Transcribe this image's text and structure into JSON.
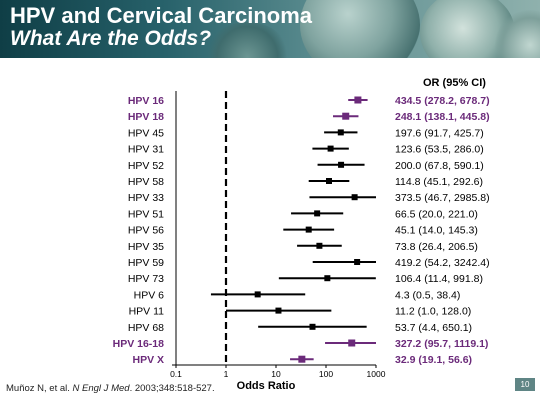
{
  "slide": {
    "title": "HPV and Cervical Carcinoma",
    "subtitle": "What Are the Odds?",
    "citation": {
      "authors": "Muñoz N, et al.",
      "journal": "N Engl J Med",
      "details": ". 2003;348:518-527."
    },
    "page_number": "10"
  },
  "colors": {
    "highlight": "#6b2a7a",
    "normal": "#000000",
    "reference_line": "#000000"
  },
  "chart_data": {
    "type": "forest",
    "title": "",
    "xlabel": "Odds Ratio",
    "ci_header": "OR (95% CI)",
    "x_scale": "log",
    "xlim": [
      0.1,
      1000
    ],
    "xticks": [
      0.1,
      1,
      10,
      100,
      1000
    ],
    "xtick_labels": [
      "0.1",
      "1",
      "10",
      "100",
      "1000"
    ],
    "reference_value": 1,
    "rows": [
      {
        "label": "HPV 16",
        "or": 434.5,
        "lo": 278.2,
        "hi": 678.7,
        "ci_text": "434.5 (278.2, 678.7)",
        "highlight": true
      },
      {
        "label": "HPV 18",
        "or": 248.1,
        "lo": 138.1,
        "hi": 445.8,
        "ci_text": "248.1 (138.1, 445.8)",
        "highlight": true
      },
      {
        "label": "HPV 45",
        "or": 197.6,
        "lo": 91.7,
        "hi": 425.7,
        "ci_text": "197.6 (91.7, 425.7)",
        "highlight": false
      },
      {
        "label": "HPV 31",
        "or": 123.6,
        "lo": 53.5,
        "hi": 286.0,
        "ci_text": "123.6 (53.5, 286.0)",
        "highlight": false
      },
      {
        "label": "HPV 52",
        "or": 200.0,
        "lo": 67.8,
        "hi": 590.1,
        "ci_text": "200.0 (67.8, 590.1)",
        "highlight": false
      },
      {
        "label": "HPV 58",
        "or": 114.8,
        "lo": 45.1,
        "hi": 292.6,
        "ci_text": "114.8 (45.1, 292.6)",
        "highlight": false
      },
      {
        "label": "HPV 33",
        "or": 373.5,
        "lo": 46.7,
        "hi": 2985.8,
        "ci_text": "373.5 (46.7, 2985.8)",
        "highlight": false
      },
      {
        "label": "HPV 51",
        "or": 66.5,
        "lo": 20.0,
        "hi": 221.0,
        "ci_text": "66.5 (20.0, 221.0)",
        "highlight": false
      },
      {
        "label": "HPV 56",
        "or": 45.1,
        "lo": 14.0,
        "hi": 145.3,
        "ci_text": "45.1 (14.0, 145.3)",
        "highlight": false
      },
      {
        "label": "HPV 35",
        "or": 73.8,
        "lo": 26.4,
        "hi": 206.5,
        "ci_text": "73.8 (26.4, 206.5)",
        "highlight": false
      },
      {
        "label": "HPV 59",
        "or": 419.2,
        "lo": 54.2,
        "hi": 3242.4,
        "ci_text": "419.2 (54.2, 3242.4)",
        "highlight": false
      },
      {
        "label": "HPV 73",
        "or": 106.4,
        "lo": 11.4,
        "hi": 991.8,
        "ci_text": "106.4 (11.4, 991.8)",
        "highlight": false
      },
      {
        "label": "HPV 6",
        "or": 4.3,
        "lo": 0.5,
        "hi": 38.4,
        "ci_text": "4.3 (0.5, 38.4)",
        "highlight": false
      },
      {
        "label": "HPV 11",
        "or": 11.2,
        "lo": 1.0,
        "hi": 128.0,
        "ci_text": "11.2 (1.0, 128.0)",
        "highlight": false
      },
      {
        "label": "HPV 68",
        "or": 53.7,
        "lo": 4.4,
        "hi": 650.1,
        "ci_text": "53.7 (4.4, 650.1)",
        "highlight": false
      },
      {
        "label": "HPV 16-18",
        "or": 327.2,
        "lo": 95.7,
        "hi": 1119.1,
        "ci_text": "327.2 (95.7, 1119.1)",
        "highlight": true
      },
      {
        "label": "HPV X",
        "or": 32.9,
        "lo": 19.1,
        "hi": 56.6,
        "ci_text": "32.9 (19.1, 56.6)",
        "highlight": true
      }
    ]
  }
}
